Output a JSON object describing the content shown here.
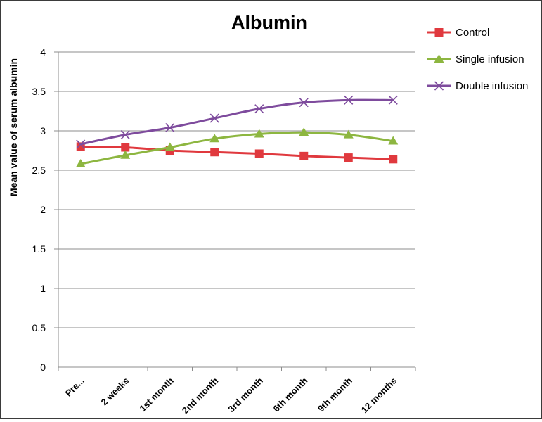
{
  "chart_data": {
    "type": "line",
    "title": "Albumin",
    "ylabel": "Mean value of serum albumin",
    "xlabel": "",
    "categories": [
      "Pre...",
      "2 weeks",
      "1st month",
      "2nd month",
      "3rd month",
      "6th month",
      "9th month",
      "12 months"
    ],
    "ylim": [
      0,
      4
    ],
    "yticks": [
      "0",
      "0.5",
      "1",
      "1.5",
      "2",
      "2.5",
      "3",
      "3.5",
      "4"
    ],
    "grid": true,
    "legend_position": "top-right",
    "series": [
      {
        "name": "Control",
        "color": "#e0393e",
        "marker": "square",
        "values": [
          2.8,
          2.79,
          2.75,
          2.73,
          2.71,
          2.68,
          2.66,
          2.64
        ]
      },
      {
        "name": "Single infusion",
        "color": "#8db640",
        "marker": "triangle",
        "values": [
          2.58,
          2.69,
          2.79,
          2.9,
          2.96,
          2.98,
          2.95,
          2.87
        ]
      },
      {
        "name": "Double infusion",
        "color": "#7e4b9d",
        "marker": "x",
        "values": [
          2.83,
          2.95,
          3.04,
          3.16,
          3.28,
          3.36,
          3.39,
          3.39
        ]
      }
    ]
  }
}
